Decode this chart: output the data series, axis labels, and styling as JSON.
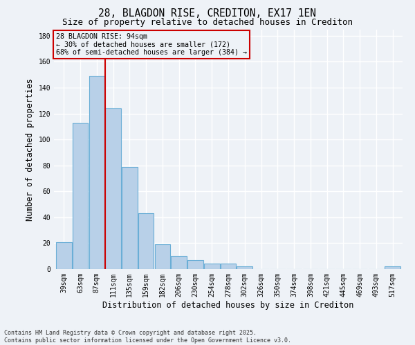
{
  "title": "28, BLAGDON RISE, CREDITON, EX17 1EN",
  "subtitle": "Size of property relative to detached houses in Crediton",
  "xlabel": "Distribution of detached houses by size in Crediton",
  "ylabel": "Number of detached properties",
  "footer": "Contains HM Land Registry data © Crown copyright and database right 2025.\nContains public sector information licensed under the Open Government Licence v3.0.",
  "categories": [
    "39sqm",
    "63sqm",
    "87sqm",
    "111sqm",
    "135sqm",
    "159sqm",
    "182sqm",
    "206sqm",
    "230sqm",
    "254sqm",
    "278sqm",
    "302sqm",
    "326sqm",
    "350sqm",
    "374sqm",
    "398sqm",
    "421sqm",
    "445sqm",
    "469sqm",
    "493sqm",
    "517sqm"
  ],
  "values": [
    21,
    113,
    149,
    124,
    79,
    43,
    19,
    10,
    7,
    4,
    4,
    2,
    0,
    0,
    0,
    0,
    0,
    0,
    0,
    0,
    2
  ],
  "bar_color": "#b8d0e8",
  "bar_edge_color": "#6aaed6",
  "vline_color": "#cc0000",
  "annotation_text": "28 BLAGDON RISE: 94sqm\n← 30% of detached houses are smaller (172)\n68% of semi-detached houses are larger (384) →",
  "annotation_box_color": "#cc0000",
  "annotation_fontsize": 7.2,
  "ylim": [
    0,
    185
  ],
  "yticks": [
    0,
    20,
    40,
    60,
    80,
    100,
    120,
    140,
    160,
    180
  ],
  "background_color": "#eef2f7",
  "grid_color": "#ffffff",
  "title_fontsize": 10.5,
  "subtitle_fontsize": 9,
  "xlabel_fontsize": 8.5,
  "ylabel_fontsize": 8.5,
  "tick_fontsize": 7,
  "footer_fontsize": 6
}
